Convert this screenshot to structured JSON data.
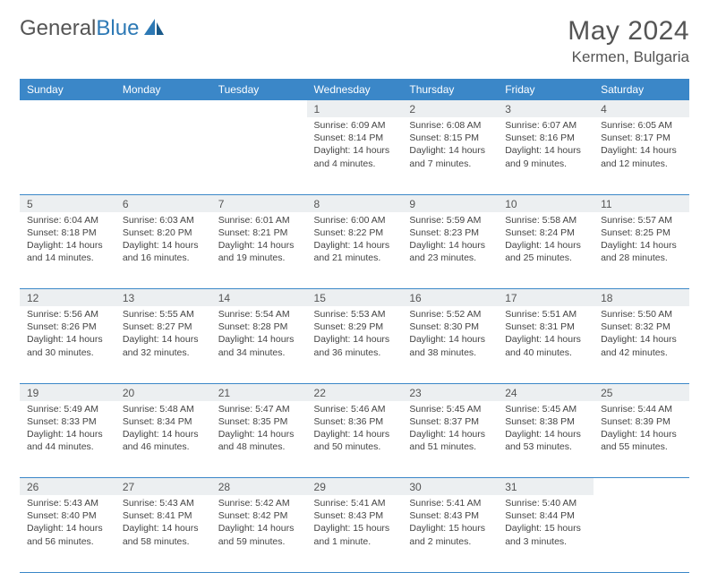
{
  "logo": {
    "word1": "General",
    "word2": "Blue"
  },
  "title": "May 2024",
  "location": "Kermen, Bulgaria",
  "colors": {
    "header_bg": "#3b87c8",
    "header_text": "#ffffff",
    "daynum_bg": "#eceff1",
    "border": "#3b87c8",
    "text": "#444444",
    "title_text": "#555555"
  },
  "day_headers": [
    "Sunday",
    "Monday",
    "Tuesday",
    "Wednesday",
    "Thursday",
    "Friday",
    "Saturday"
  ],
  "weeks": [
    {
      "days": [
        {
          "n": "",
          "empty": true
        },
        {
          "n": "",
          "empty": true
        },
        {
          "n": "",
          "empty": true
        },
        {
          "n": "1",
          "sunrise": "Sunrise: 6:09 AM",
          "sunset": "Sunset: 8:14 PM",
          "daylight": "Daylight: 14 hours and 4 minutes."
        },
        {
          "n": "2",
          "sunrise": "Sunrise: 6:08 AM",
          "sunset": "Sunset: 8:15 PM",
          "daylight": "Daylight: 14 hours and 7 minutes."
        },
        {
          "n": "3",
          "sunrise": "Sunrise: 6:07 AM",
          "sunset": "Sunset: 8:16 PM",
          "daylight": "Daylight: 14 hours and 9 minutes."
        },
        {
          "n": "4",
          "sunrise": "Sunrise: 6:05 AM",
          "sunset": "Sunset: 8:17 PM",
          "daylight": "Daylight: 14 hours and 12 minutes."
        }
      ]
    },
    {
      "days": [
        {
          "n": "5",
          "sunrise": "Sunrise: 6:04 AM",
          "sunset": "Sunset: 8:18 PM",
          "daylight": "Daylight: 14 hours and 14 minutes."
        },
        {
          "n": "6",
          "sunrise": "Sunrise: 6:03 AM",
          "sunset": "Sunset: 8:20 PM",
          "daylight": "Daylight: 14 hours and 16 minutes."
        },
        {
          "n": "7",
          "sunrise": "Sunrise: 6:01 AM",
          "sunset": "Sunset: 8:21 PM",
          "daylight": "Daylight: 14 hours and 19 minutes."
        },
        {
          "n": "8",
          "sunrise": "Sunrise: 6:00 AM",
          "sunset": "Sunset: 8:22 PM",
          "daylight": "Daylight: 14 hours and 21 minutes."
        },
        {
          "n": "9",
          "sunrise": "Sunrise: 5:59 AM",
          "sunset": "Sunset: 8:23 PM",
          "daylight": "Daylight: 14 hours and 23 minutes."
        },
        {
          "n": "10",
          "sunrise": "Sunrise: 5:58 AM",
          "sunset": "Sunset: 8:24 PM",
          "daylight": "Daylight: 14 hours and 25 minutes."
        },
        {
          "n": "11",
          "sunrise": "Sunrise: 5:57 AM",
          "sunset": "Sunset: 8:25 PM",
          "daylight": "Daylight: 14 hours and 28 minutes."
        }
      ]
    },
    {
      "days": [
        {
          "n": "12",
          "sunrise": "Sunrise: 5:56 AM",
          "sunset": "Sunset: 8:26 PM",
          "daylight": "Daylight: 14 hours and 30 minutes."
        },
        {
          "n": "13",
          "sunrise": "Sunrise: 5:55 AM",
          "sunset": "Sunset: 8:27 PM",
          "daylight": "Daylight: 14 hours and 32 minutes."
        },
        {
          "n": "14",
          "sunrise": "Sunrise: 5:54 AM",
          "sunset": "Sunset: 8:28 PM",
          "daylight": "Daylight: 14 hours and 34 minutes."
        },
        {
          "n": "15",
          "sunrise": "Sunrise: 5:53 AM",
          "sunset": "Sunset: 8:29 PM",
          "daylight": "Daylight: 14 hours and 36 minutes."
        },
        {
          "n": "16",
          "sunrise": "Sunrise: 5:52 AM",
          "sunset": "Sunset: 8:30 PM",
          "daylight": "Daylight: 14 hours and 38 minutes."
        },
        {
          "n": "17",
          "sunrise": "Sunrise: 5:51 AM",
          "sunset": "Sunset: 8:31 PM",
          "daylight": "Daylight: 14 hours and 40 minutes."
        },
        {
          "n": "18",
          "sunrise": "Sunrise: 5:50 AM",
          "sunset": "Sunset: 8:32 PM",
          "daylight": "Daylight: 14 hours and 42 minutes."
        }
      ]
    },
    {
      "days": [
        {
          "n": "19",
          "sunrise": "Sunrise: 5:49 AM",
          "sunset": "Sunset: 8:33 PM",
          "daylight": "Daylight: 14 hours and 44 minutes."
        },
        {
          "n": "20",
          "sunrise": "Sunrise: 5:48 AM",
          "sunset": "Sunset: 8:34 PM",
          "daylight": "Daylight: 14 hours and 46 minutes."
        },
        {
          "n": "21",
          "sunrise": "Sunrise: 5:47 AM",
          "sunset": "Sunset: 8:35 PM",
          "daylight": "Daylight: 14 hours and 48 minutes."
        },
        {
          "n": "22",
          "sunrise": "Sunrise: 5:46 AM",
          "sunset": "Sunset: 8:36 PM",
          "daylight": "Daylight: 14 hours and 50 minutes."
        },
        {
          "n": "23",
          "sunrise": "Sunrise: 5:45 AM",
          "sunset": "Sunset: 8:37 PM",
          "daylight": "Daylight: 14 hours and 51 minutes."
        },
        {
          "n": "24",
          "sunrise": "Sunrise: 5:45 AM",
          "sunset": "Sunset: 8:38 PM",
          "daylight": "Daylight: 14 hours and 53 minutes."
        },
        {
          "n": "25",
          "sunrise": "Sunrise: 5:44 AM",
          "sunset": "Sunset: 8:39 PM",
          "daylight": "Daylight: 14 hours and 55 minutes."
        }
      ]
    },
    {
      "days": [
        {
          "n": "26",
          "sunrise": "Sunrise: 5:43 AM",
          "sunset": "Sunset: 8:40 PM",
          "daylight": "Daylight: 14 hours and 56 minutes."
        },
        {
          "n": "27",
          "sunrise": "Sunrise: 5:43 AM",
          "sunset": "Sunset: 8:41 PM",
          "daylight": "Daylight: 14 hours and 58 minutes."
        },
        {
          "n": "28",
          "sunrise": "Sunrise: 5:42 AM",
          "sunset": "Sunset: 8:42 PM",
          "daylight": "Daylight: 14 hours and 59 minutes."
        },
        {
          "n": "29",
          "sunrise": "Sunrise: 5:41 AM",
          "sunset": "Sunset: 8:43 PM",
          "daylight": "Daylight: 15 hours and 1 minute."
        },
        {
          "n": "30",
          "sunrise": "Sunrise: 5:41 AM",
          "sunset": "Sunset: 8:43 PM",
          "daylight": "Daylight: 15 hours and 2 minutes."
        },
        {
          "n": "31",
          "sunrise": "Sunrise: 5:40 AM",
          "sunset": "Sunset: 8:44 PM",
          "daylight": "Daylight: 15 hours and 3 minutes."
        },
        {
          "n": "",
          "empty": true
        }
      ]
    }
  ]
}
